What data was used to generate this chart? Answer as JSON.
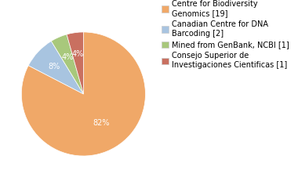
{
  "labels": [
    "Centre for Biodiversity\nGenomics [19]",
    "Canadian Centre for DNA\nBarcoding [2]",
    "Mined from GenBank, NCBI [1]",
    "Consejo Superior de\nInvestigaciones Cientificas [1]"
  ],
  "values": [
    19,
    2,
    1,
    1
  ],
  "colors": [
    "#F0A868",
    "#A8C4E0",
    "#A8C87C",
    "#C97060"
  ],
  "pct_labels": [
    "82%",
    "8%",
    "4%",
    "4%"
  ],
  "background_color": "#ffffff",
  "text_color": "#ffffff",
  "font_size": 7,
  "legend_font_size": 7,
  "startangle": 90
}
